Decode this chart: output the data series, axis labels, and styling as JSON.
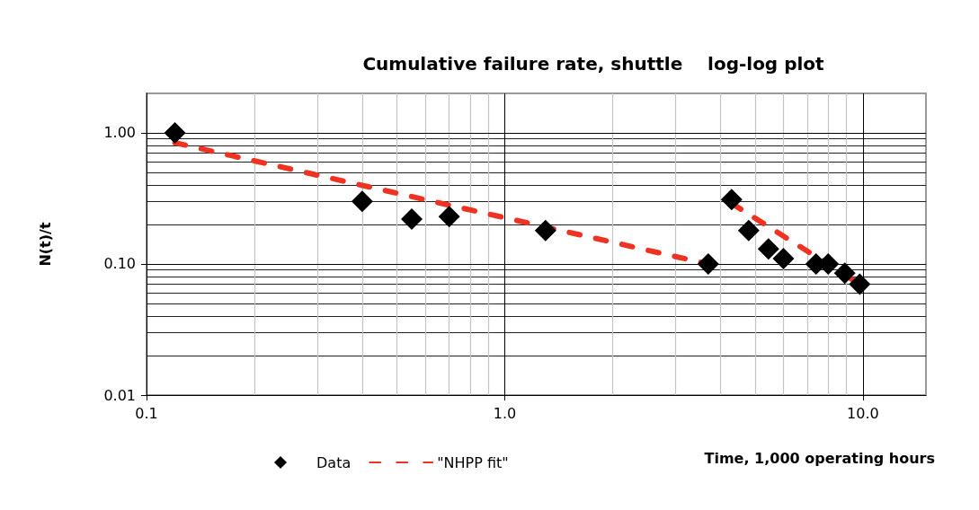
{
  "chart_data": {
    "type": "scatter",
    "title": "Cumulative failure rate, shuttle    log-log plot",
    "xlabel": "Time, 1,000 operating hours",
    "ylabel": "N(t)/t",
    "log": "xy",
    "grid": true,
    "legend": "bottom",
    "xlim": [
      0.1,
      15
    ],
    "xticks": [
      0.1,
      {
        "value": 1,
        "label": "1.0"
      },
      {
        "value": 10,
        "label": "10.0"
      }
    ],
    "ylim": [
      0.01,
      2
    ],
    "yticks": [
      0.01,
      {
        "value": 0.1,
        "label": "0.10"
      },
      {
        "value": 1,
        "label": "1.00"
      }
    ],
    "series": [
      {
        "name": "Data",
        "marker": "diamond",
        "color": "#000000",
        "x": [
          0.12,
          0.4,
          0.55,
          0.7,
          1.3,
          3.7,
          4.3,
          4.8,
          5.45,
          6.0,
          7.4,
          8.0,
          8.9,
          9.8
        ],
        "values": [
          1.0,
          0.3,
          0.22,
          0.23,
          0.18,
          0.1,
          0.31,
          0.18,
          0.13,
          0.11,
          0.1,
          0.1,
          0.085,
          0.07
        ]
      },
      {
        "name": "\"NHPP fit\"",
        "type": "line",
        "marker": "none",
        "line_style": "dashed",
        "color": "#ee3322",
        "x": [
          0.12,
          3.7,
          4.0,
          4.3,
          9.8
        ],
        "values": [
          0.84,
          0.1,
          null,
          0.29,
          0.07
        ]
      }
    ]
  }
}
